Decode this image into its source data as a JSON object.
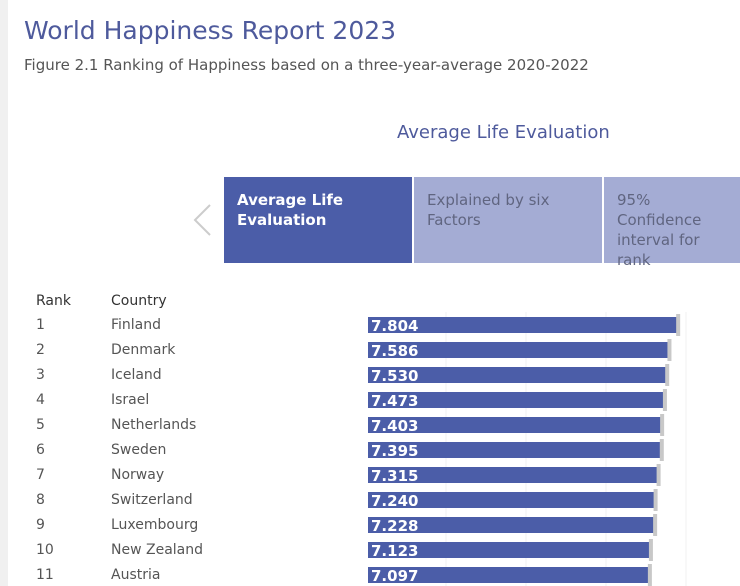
{
  "title": "World Happiness Report 2023",
  "subtitle": "Figure 2.1 Ranking of Happiness based on a three-year-average 2020-2022",
  "section_title": "Average Life Evaluation",
  "nav": {
    "prev_icon": "chevron-left-icon"
  },
  "tabs": [
    {
      "label": "Average Life Evaluation",
      "active": true
    },
    {
      "label": "Explained by six Factors",
      "active": false
    },
    {
      "label": "95% Confidence interval for rank",
      "active": false
    }
  ],
  "table": {
    "headers": {
      "rank": "Rank",
      "country": "Country"
    }
  },
  "colors": {
    "bar": "#4b5da8",
    "title": "#4e5a9c",
    "tab_inactive": "#a4acd4"
  },
  "chart_data": {
    "type": "bar",
    "orientation": "horizontal",
    "xlim": [
      0,
      9.3
    ],
    "grid": true,
    "rows": [
      {
        "rank": "1",
        "country": "Finland",
        "value": 7.804,
        "label": "7.804"
      },
      {
        "rank": "2",
        "country": "Denmark",
        "value": 7.586,
        "label": "7.586"
      },
      {
        "rank": "3",
        "country": "Iceland",
        "value": 7.53,
        "label": "7.530"
      },
      {
        "rank": "4",
        "country": "Israel",
        "value": 7.473,
        "label": "7.473"
      },
      {
        "rank": "5",
        "country": "Netherlands",
        "value": 7.403,
        "label": "7.403"
      },
      {
        "rank": "6",
        "country": "Sweden",
        "value": 7.395,
        "label": "7.395"
      },
      {
        "rank": "7",
        "country": "Norway",
        "value": 7.315,
        "label": "7.315"
      },
      {
        "rank": "8",
        "country": "Switzerland",
        "value": 7.24,
        "label": "7.240"
      },
      {
        "rank": "9",
        "country": "Luxembourg",
        "value": 7.228,
        "label": "7.228"
      },
      {
        "rank": "10",
        "country": "New Zealand",
        "value": 7.123,
        "label": "7.123"
      },
      {
        "rank": "11",
        "country": "Austria",
        "value": 7.097,
        "label": "7.097"
      }
    ]
  }
}
